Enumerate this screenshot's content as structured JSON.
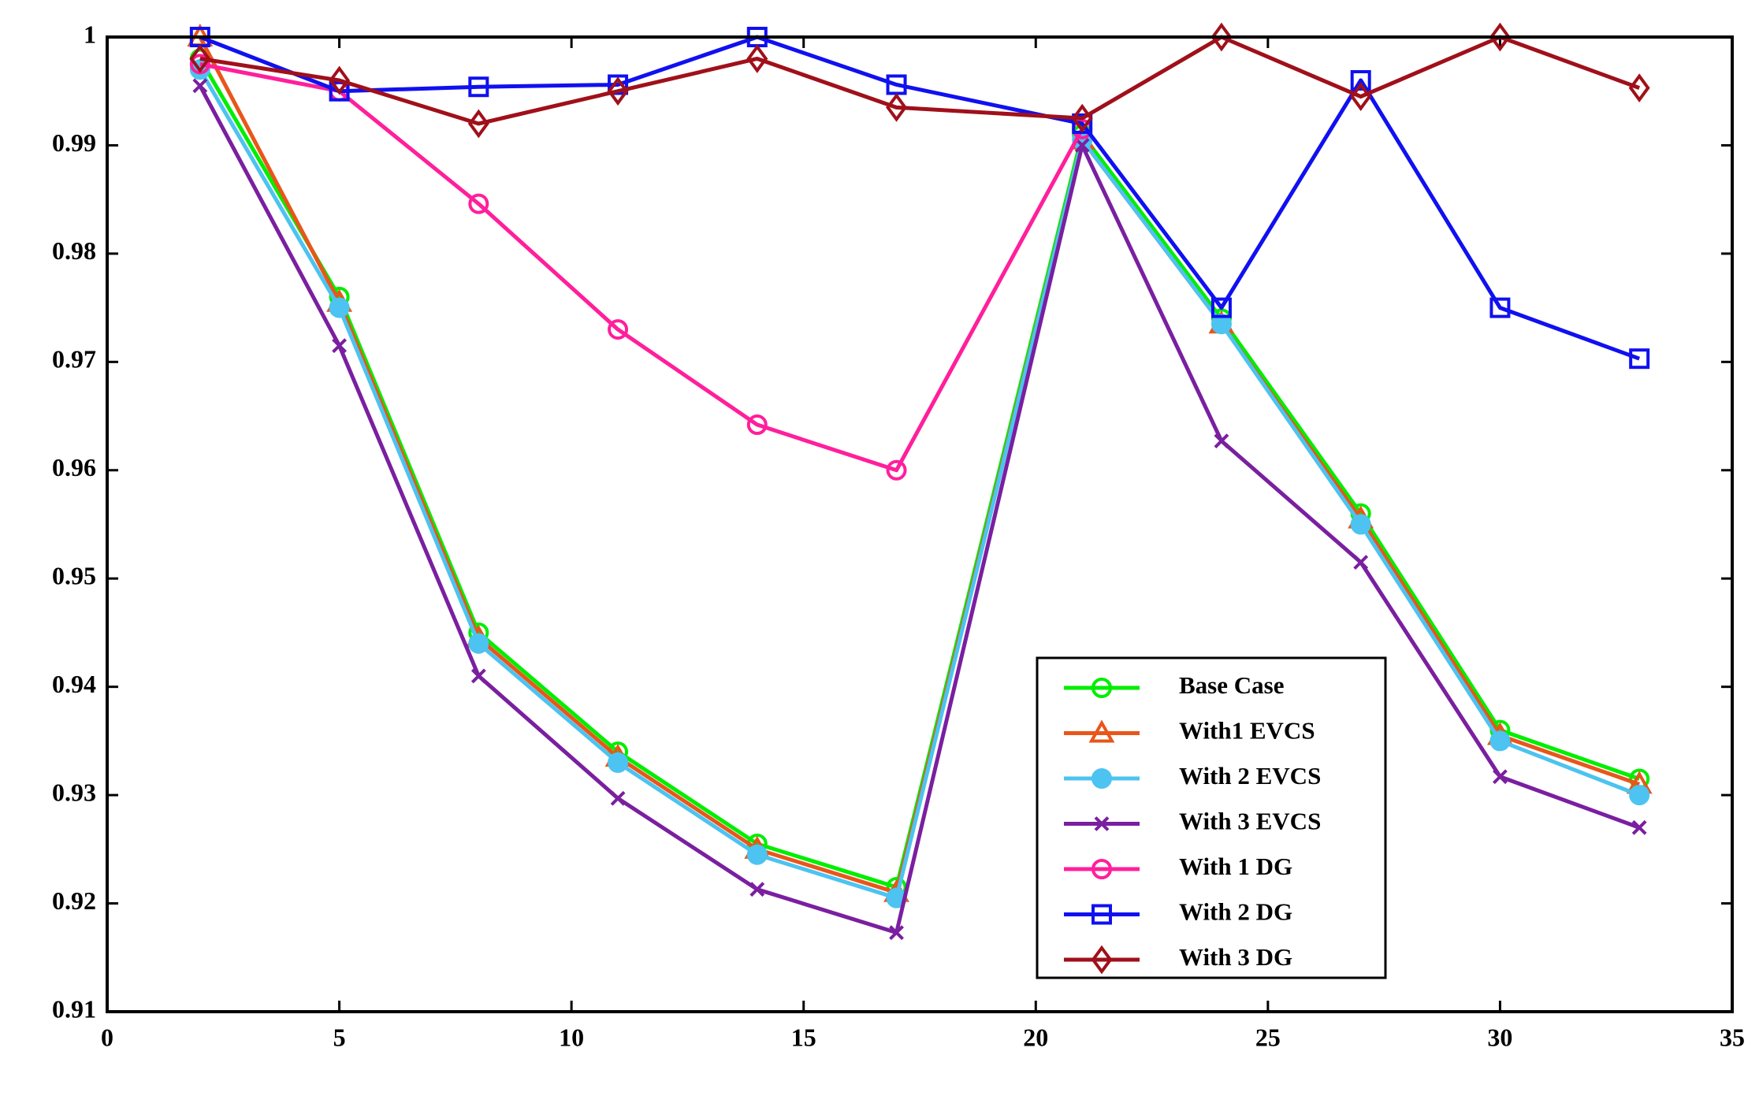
{
  "chart_data": {
    "type": "line",
    "x": [
      2,
      5,
      8,
      11,
      14,
      17,
      21,
      24,
      27,
      30,
      33
    ],
    "series": [
      {
        "name": "Base Case",
        "color": "#00ee00",
        "marker": "open-circle",
        "values": [
          0.998,
          0.976,
          0.945,
          0.934,
          0.9255,
          0.9215,
          0.991,
          0.974,
          0.956,
          0.936,
          0.9315
        ]
      },
      {
        "name": "With1 EVCS",
        "color": "#e8561a",
        "marker": "open-triangle",
        "values": [
          1.0,
          0.9755,
          0.9445,
          0.9335,
          0.925,
          0.921,
          0.9905,
          0.9735,
          0.9555,
          0.9355,
          0.931
        ]
      },
      {
        "name": "With 2 EVCS",
        "color": "#4cc3f0",
        "marker": "filled-circle",
        "values": [
          0.997,
          0.975,
          0.944,
          0.933,
          0.9245,
          0.9205,
          0.9905,
          0.9735,
          0.955,
          0.935,
          0.93
        ]
      },
      {
        "name": "With 3 EVCS",
        "color": "#7a1fa0",
        "marker": "x",
        "values": [
          0.9955,
          0.9715,
          0.941,
          0.9297,
          0.9213,
          0.9173,
          0.99,
          0.9627,
          0.9515,
          0.9317,
          0.927
        ]
      },
      {
        "name": "With 1 DG",
        "color": "#ff1f9b",
        "marker": "open-circle",
        "values": [
          0.9975,
          0.995,
          0.9846,
          0.973,
          0.9642,
          0.96,
          0.9915,
          null,
          null,
          null,
          null
        ]
      },
      {
        "name": "With 2 DG",
        "color": "#1010f0",
        "marker": "open-square",
        "values": [
          1.0,
          0.995,
          0.9954,
          0.9956,
          1.0,
          0.9956,
          0.992,
          0.975,
          0.996,
          0.975,
          0.9703
        ]
      },
      {
        "name": "With 3 DG",
        "color": "#a0101a",
        "marker": "open-diamond",
        "values": [
          0.998,
          0.996,
          0.992,
          0.995,
          0.998,
          0.9935,
          0.9925,
          1.0,
          0.9945,
          1.0,
          0.9953
        ]
      }
    ],
    "xlim": [
      0,
      35
    ],
    "xticks": [
      0,
      5,
      10,
      15,
      20,
      25,
      30,
      35
    ],
    "ylim": [
      0.91,
      1
    ],
    "yticks": [
      0.91,
      0.92,
      0.93,
      0.94,
      0.95,
      0.96,
      0.97,
      0.98,
      0.99,
      1
    ],
    "grid": false
  }
}
